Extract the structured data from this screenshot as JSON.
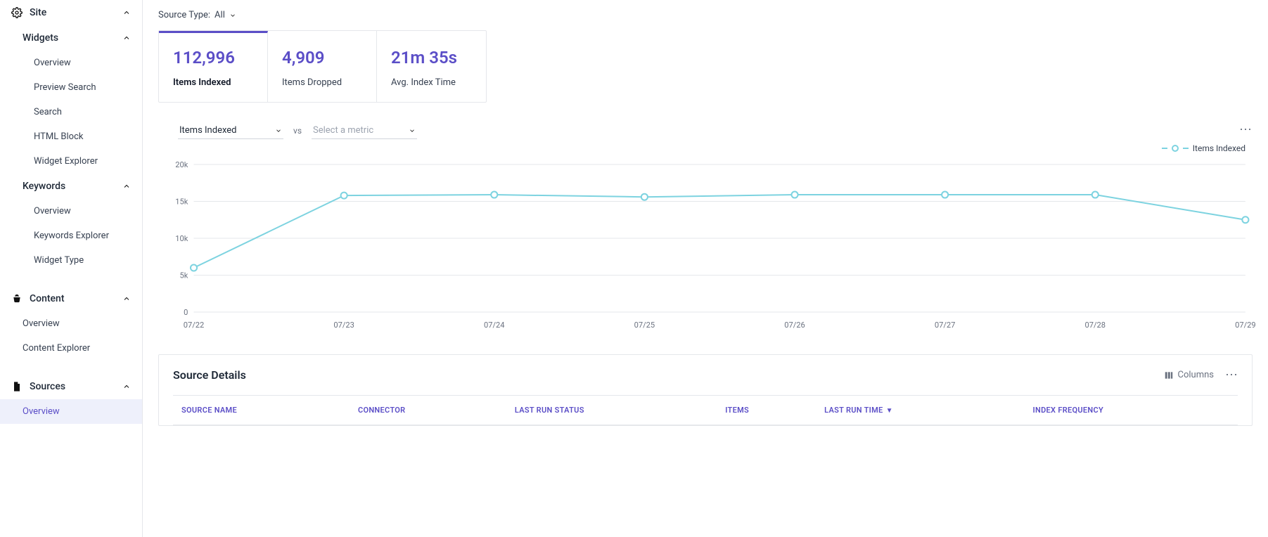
{
  "sidebar": {
    "site": {
      "label": "Site"
    },
    "widgets": {
      "label": "Widgets",
      "items": [
        "Overview",
        "Preview Search",
        "Search",
        "HTML Block",
        "Widget Explorer"
      ]
    },
    "keywords": {
      "label": "Keywords",
      "items": [
        "Overview",
        "Keywords Explorer",
        "Widget Type"
      ]
    },
    "content": {
      "label": "Content",
      "items": [
        "Overview",
        "Content Explorer"
      ]
    },
    "sources": {
      "label": "Sources",
      "items": [
        "Overview"
      ],
      "active_index": 0
    }
  },
  "filter": {
    "prefix": "Source Type:",
    "value": "All"
  },
  "cards": [
    {
      "value": "112,996",
      "label": "Items Indexed",
      "active": true
    },
    {
      "value": "4,909",
      "label": "Items Dropped",
      "active": false
    },
    {
      "value": "21m 35s",
      "label": "Avg. Index Time",
      "active": false
    }
  ],
  "chart": {
    "metric_a": "Items Indexed",
    "vs_label": "vs",
    "metric_b_placeholder": "Select a metric",
    "legend_label": "Items Indexed",
    "type": "line",
    "line_color": "#7dd3e0",
    "marker_fill": "#ffffff",
    "marker_stroke": "#7dd3e0",
    "grid_color": "#e5e7eb",
    "axis_label_color": "#6b7280",
    "y_ticks": [
      0,
      5000,
      10000,
      15000,
      20000
    ],
    "y_tick_labels": [
      "0",
      "5k",
      "10k",
      "15k",
      "20k"
    ],
    "ylim": [
      0,
      20000
    ],
    "x_labels": [
      "07/22",
      "07/23",
      "07/24",
      "07/25",
      "07/26",
      "07/27",
      "07/28",
      "07/29"
    ],
    "values": [
      6000,
      15800,
      15900,
      15600,
      15900,
      15900,
      15900,
      12500
    ]
  },
  "source_details": {
    "title": "Source Details",
    "columns_btn": "Columns",
    "columns": [
      "SOURCE NAME",
      "CONNECTOR",
      "LAST RUN STATUS",
      "ITEMS",
      "LAST RUN TIME",
      "INDEX FREQUENCY"
    ],
    "sort_column_index": 4
  }
}
